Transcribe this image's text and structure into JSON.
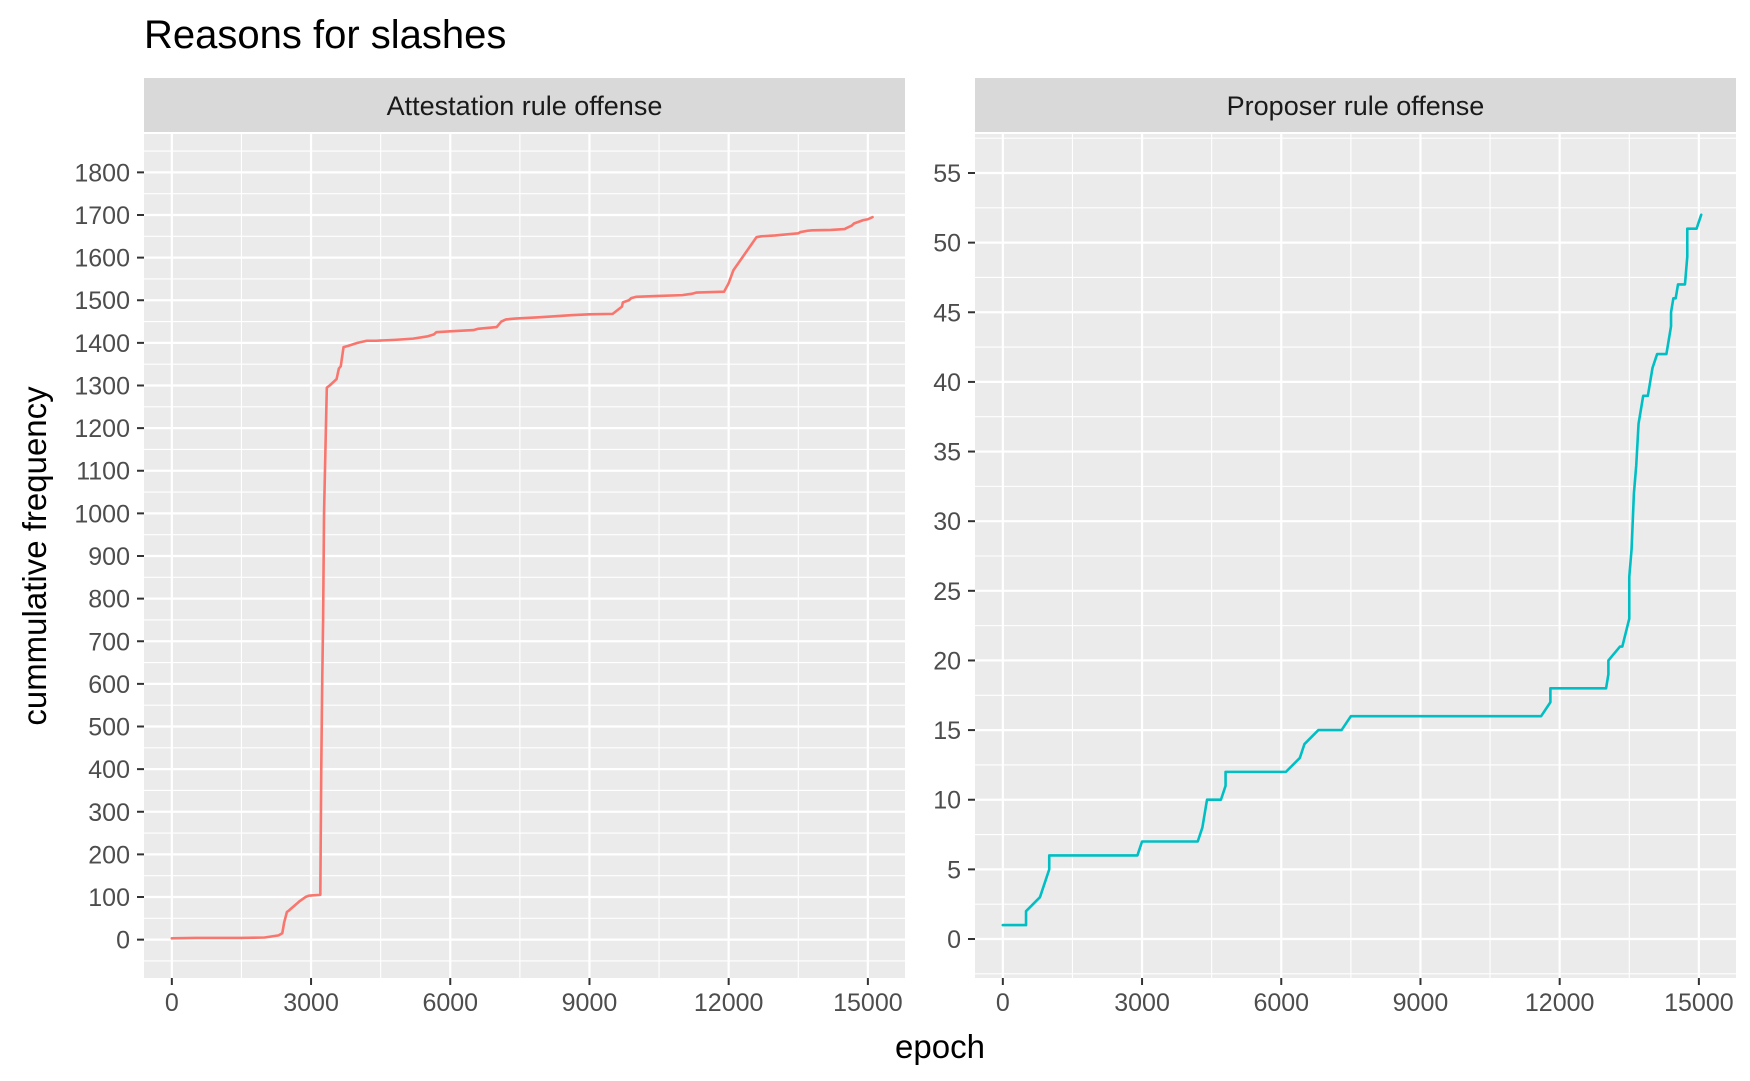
{
  "title": "Reasons for slashes",
  "x_axis_title": "epoch",
  "y_axis_title": "cummulative frequency",
  "chart_data": [
    {
      "type": "line",
      "facet": "Attestation rule offense",
      "color": "#F8766D",
      "xlim": [
        -600,
        15800
      ],
      "ylim": [
        -90,
        1890
      ],
      "x_ticks": [
        0,
        3000,
        6000,
        9000,
        12000,
        15000
      ],
      "x_tick_labels": [
        "0",
        "3000",
        "6000",
        "9000",
        "12000",
        "15000"
      ],
      "y_ticks": [
        0,
        100,
        200,
        300,
        400,
        500,
        600,
        700,
        800,
        900,
        1000,
        1100,
        1200,
        1300,
        1400,
        1500,
        1600,
        1700,
        1800
      ],
      "y_tick_labels": [
        "0",
        "100",
        "200",
        "300",
        "400",
        "500",
        "600",
        "700",
        "800",
        "900",
        "1000",
        "1100",
        "1200",
        "1300",
        "1400",
        "1500",
        "1600",
        "1700",
        "1800"
      ],
      "series": [
        {
          "x": [
            0,
            500,
            1000,
            1500,
            2000,
            2300,
            2380,
            2420,
            2480,
            2520,
            2700,
            2750,
            2880,
            2950,
            3050,
            3200,
            3220,
            3240,
            3260,
            3280,
            3300,
            3320,
            3340,
            3400,
            3500,
            3550,
            3600,
            3640,
            3700,
            3800,
            4000,
            4200,
            4400,
            4800,
            5200,
            5500,
            5650,
            5700,
            6000,
            6500,
            6600,
            7000,
            7100,
            7200,
            7400,
            7900,
            8200,
            8600,
            9000,
            9500,
            9700,
            9720,
            9850,
            9900,
            10000,
            10500,
            11000,
            11200,
            11300,
            11900,
            12000,
            12100,
            12600,
            12700,
            13000,
            13500,
            13550,
            13700,
            13800,
            14200,
            14500,
            14550,
            14650,
            14700,
            14900,
            15000,
            15100
          ],
          "y": [
            3,
            4,
            4,
            4,
            5,
            10,
            15,
            40,
            65,
            68,
            85,
            90,
            100,
            103,
            104,
            105,
            400,
            600,
            750,
            1000,
            1100,
            1200,
            1295,
            1300,
            1310,
            1315,
            1340,
            1345,
            1390,
            1393,
            1400,
            1405,
            1405,
            1407,
            1410,
            1415,
            1420,
            1425,
            1427,
            1430,
            1433,
            1437,
            1450,
            1455,
            1457,
            1460,
            1462,
            1465,
            1467,
            1468,
            1485,
            1495,
            1500,
            1505,
            1508,
            1510,
            1512,
            1515,
            1518,
            1520,
            1540,
            1570,
            1648,
            1650,
            1652,
            1657,
            1660,
            1663,
            1664,
            1665,
            1667,
            1670,
            1675,
            1680,
            1688,
            1690,
            1695
          ]
        }
      ]
    },
    {
      "type": "line",
      "facet": "Proposer rule offense",
      "color": "#00BFC4",
      "xlim": [
        -600,
        15800
      ],
      "ylim": [
        -2.8,
        57.8
      ],
      "x_ticks": [
        0,
        3000,
        6000,
        9000,
        12000,
        15000
      ],
      "x_tick_labels": [
        "0",
        "3000",
        "6000",
        "9000",
        "12000",
        "15000"
      ],
      "y_ticks": [
        0,
        5,
        10,
        15,
        20,
        25,
        30,
        35,
        40,
        45,
        50,
        55
      ],
      "y_tick_labels": [
        "0",
        "5",
        "10",
        "15",
        "20",
        "25",
        "30",
        "35",
        "40",
        "45",
        "50",
        "55"
      ],
      "series": [
        {
          "x": [
            0,
            500,
            500,
            800,
            900,
            1000,
            1000,
            2900,
            3000,
            3000,
            4200,
            4300,
            4400,
            4400,
            4700,
            4800,
            4800,
            6100,
            6400,
            6400,
            6500,
            6500,
            6800,
            7300,
            7500,
            11600,
            11800,
            11800,
            13000,
            13050,
            13050,
            13300,
            13350,
            13350,
            13500,
            13500,
            13550,
            13600,
            13650,
            13700,
            13750,
            13800,
            13900,
            13950,
            14000,
            14100,
            14100,
            14300,
            14400,
            14400,
            14450,
            14500,
            14500,
            14550,
            14700,
            14750,
            14750,
            14950,
            15050
          ],
          "y": [
            1,
            1,
            2,
            3,
            4,
            5,
            6,
            6,
            7,
            7,
            7,
            8,
            10,
            10,
            10,
            11,
            12,
            12,
            13,
            13,
            14,
            14,
            15,
            15,
            16,
            16,
            17,
            18,
            18,
            19,
            20,
            21,
            21,
            21,
            23,
            26,
            28,
            32,
            34,
            37,
            38,
            39,
            39,
            40,
            41,
            42,
            42,
            42,
            44,
            45,
            46,
            46,
            46,
            47,
            47,
            49,
            51,
            51,
            52
          ]
        }
      ]
    }
  ]
}
